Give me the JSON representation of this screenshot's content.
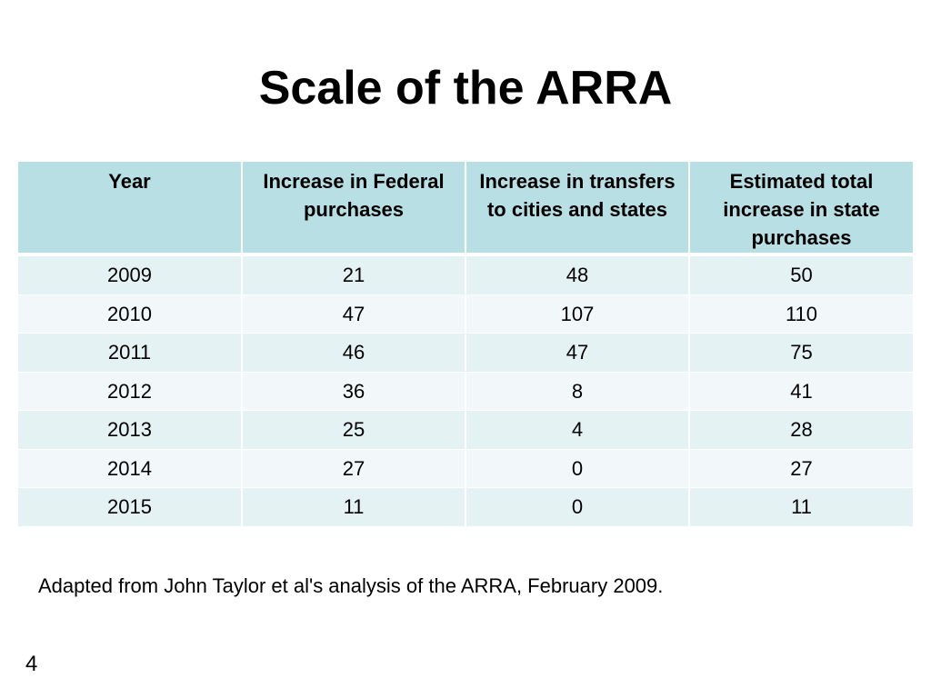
{
  "slide": {
    "title": "Scale of the ARRA",
    "source_note": "Adapted from John Taylor et al's analysis of the ARRA, February 2009.",
    "page_number": "4"
  },
  "table": {
    "headers": [
      "Year",
      "Increase in Federal purchases",
      "Increase in transfers to cities and states",
      "Estimated total increase in state purchases"
    ],
    "rows": [
      [
        "2009",
        "21",
        "48",
        "50"
      ],
      [
        "2010",
        "47",
        "107",
        "110"
      ],
      [
        "2011",
        "46",
        "47",
        "75"
      ],
      [
        "2012",
        "36",
        "8",
        "41"
      ],
      [
        "2013",
        "25",
        "4",
        "28"
      ],
      [
        "2014",
        "27",
        "0",
        "27"
      ],
      [
        "2015",
        "11",
        "0",
        "11"
      ]
    ]
  },
  "colors": {
    "header_fill": "#b8dfe3",
    "row_fill_odd": "#e5f2f4",
    "row_fill_even": "#f2f8f9"
  }
}
